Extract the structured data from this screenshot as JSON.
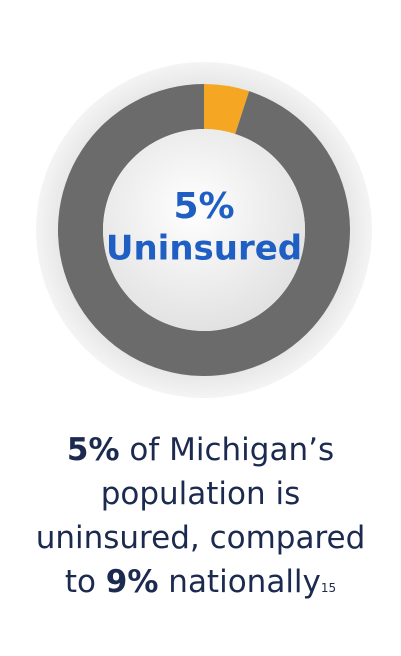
{
  "chart_data": {
    "type": "donut",
    "values": [
      5,
      95
    ],
    "colors": [
      "#f5a623",
      "#6b6b6b"
    ],
    "value_labels": [
      "5%",
      null
    ],
    "center_label": "Uninsured",
    "caption": [
      [
        {
          "text": "5%",
          "bold": true
        },
        {
          "text": " of Michigan’s"
        }
      ],
      [
        {
          "text": "population is"
        }
      ],
      [
        {
          "text": "uninsured, compared"
        }
      ],
      [
        {
          "text": "to "
        },
        {
          "text": "9%",
          "bold": true
        },
        {
          "text": " nationally"
        },
        {
          "text": "15",
          "sup": true
        }
      ]
    ]
  }
}
